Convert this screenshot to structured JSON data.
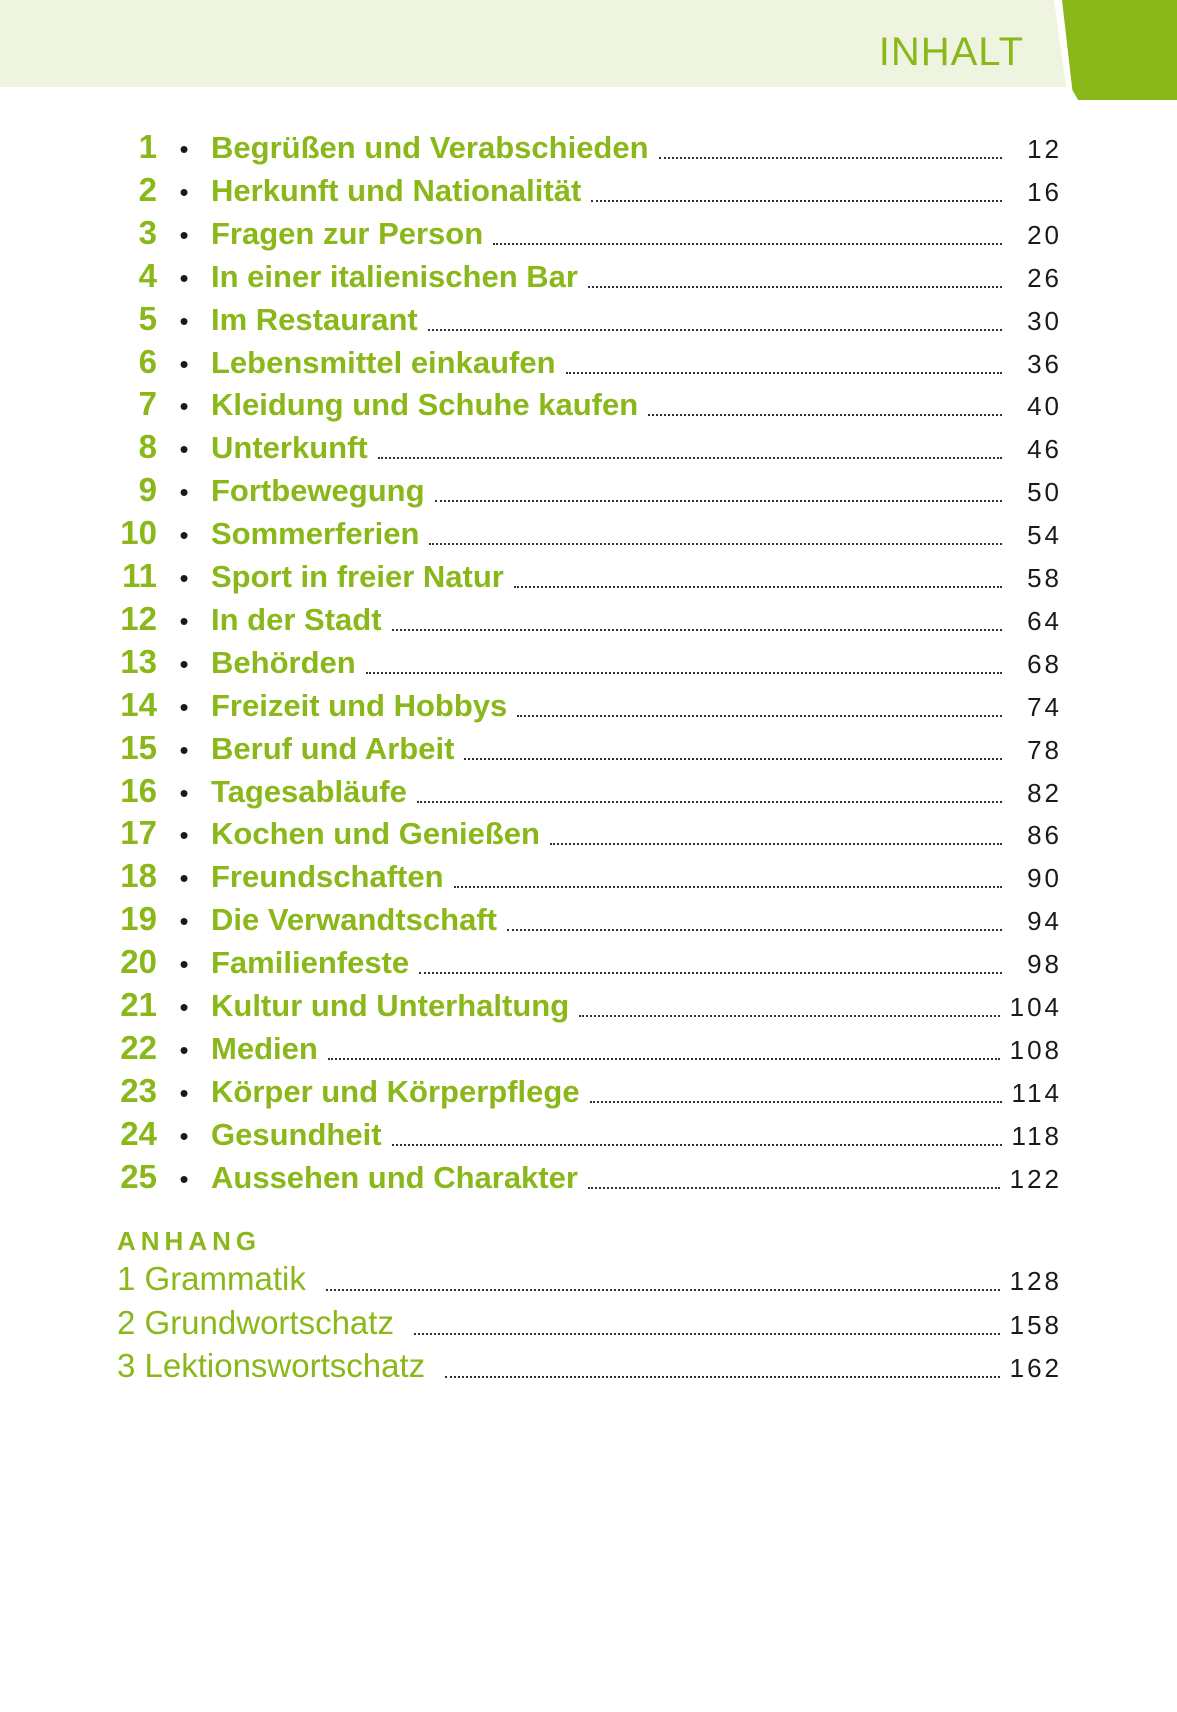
{
  "header": {
    "title": "INHALT",
    "accent": "#8ab71a",
    "band": "#eff4e1"
  },
  "chapters": [
    {
      "n": "1",
      "title": "Begrüßen und Verabschieden",
      "page": "12"
    },
    {
      "n": "2",
      "title": "Herkunft und Nationalität",
      "page": "16"
    },
    {
      "n": "3",
      "title": "Fragen zur Person",
      "page": "20"
    },
    {
      "n": "4",
      "title": "In einer italienischen Bar",
      "page": "26"
    },
    {
      "n": "5",
      "title": "Im Restaurant",
      "page": "30"
    },
    {
      "n": "6",
      "title": "Lebensmittel einkaufen",
      "page": "36"
    },
    {
      "n": "7",
      "title": "Kleidung und Schuhe kaufen",
      "page": "40"
    },
    {
      "n": "8",
      "title": "Unterkunft",
      "page": "46"
    },
    {
      "n": "9",
      "title": "Fortbewegung",
      "page": "50"
    },
    {
      "n": "10",
      "title": "Sommerferien",
      "page": "54"
    },
    {
      "n": "11",
      "title": "Sport in freier Natur",
      "page": "58"
    },
    {
      "n": "12",
      "title": "In der Stadt",
      "page": "64"
    },
    {
      "n": "13",
      "title": "Behörden",
      "page": "68"
    },
    {
      "n": "14",
      "title": "Freizeit und Hobbys",
      "page": "74"
    },
    {
      "n": "15",
      "title": "Beruf und Arbeit",
      "page": "78"
    },
    {
      "n": "16",
      "title": "Tagesabläufe",
      "page": "82"
    },
    {
      "n": "17",
      "title": "Kochen und Genießen",
      "page": "86"
    },
    {
      "n": "18",
      "title": "Freundschaften",
      "page": "90"
    },
    {
      "n": "19",
      "title": "Die Verwandtschaft",
      "page": "94"
    },
    {
      "n": "20",
      "title": "Familienfeste",
      "page": "98"
    },
    {
      "n": "21",
      "title": "Kultur und Unterhaltung",
      "page": "104"
    },
    {
      "n": "22",
      "title": "Medien",
      "page": "108"
    },
    {
      "n": "23",
      "title": "Körper und Körperpflege",
      "page": "114"
    },
    {
      "n": "24",
      "title": "Gesundheit",
      "page": "118"
    },
    {
      "n": "25",
      "title": "Aussehen und Charakter",
      "page": "122"
    }
  ],
  "appendix": {
    "heading": "ANHANG",
    "items": [
      {
        "title": "1 Grammatik",
        "page": "128"
      },
      {
        "title": "2 Grundwortschatz",
        "page": "158"
      },
      {
        "title": "3 Lektionswortschatz",
        "page": "162"
      }
    ]
  }
}
